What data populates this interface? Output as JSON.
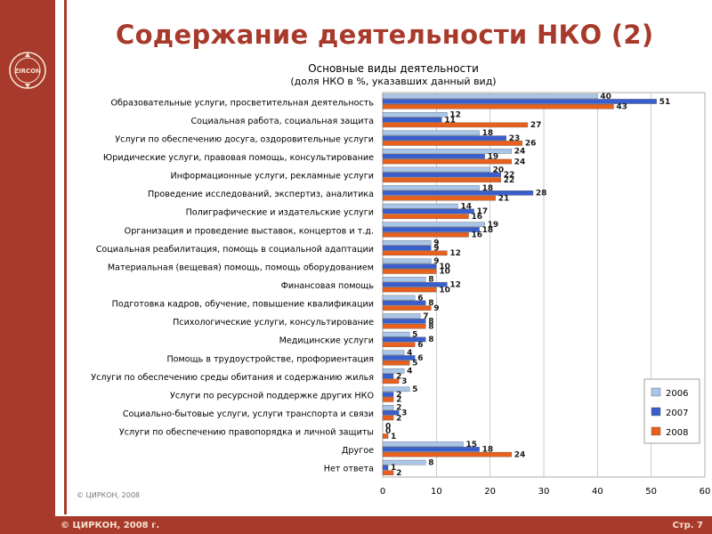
{
  "slide": {
    "title": "Содержание деятельности НКО (2)",
    "logo_text": "ZIRCON",
    "footer_left": "© ЦИРКОН, 2008 г.",
    "footer_right": "Стр. 7",
    "source_note": "© ЦИРКОН, 2008",
    "brand_color": "#a83a2c"
  },
  "chart_data": {
    "type": "bar",
    "orientation": "horizontal",
    "title": "Основные виды деятельности",
    "subtitle": "(доля НКО в %, указавших данный вид)",
    "xlim": [
      0,
      60
    ],
    "xticks": [
      0,
      10,
      20,
      30,
      40,
      50,
      60
    ],
    "grid": "vertical",
    "legend_position": "bottom-right",
    "categories": [
      "Образовательные услуги, просветительная деятельность",
      "Социальная работа, социальная защита",
      "Услуги по обеспечению досуга, оздоровительные услуги",
      "Юридические услуги, правовая помощь, консультирование",
      "Информационные услуги, рекламные услуги",
      "Проведение исследований, экспертиз, аналитика",
      "Полиграфические и издательские услуги",
      "Организация и проведение выставок, концертов и т.д.",
      "Социальная реабилитация, помощь в социальной адаптации",
      "Материальная (вещевая) помощь, помощь оборудованием",
      "Финансовая помощь",
      "Подготовка кадров, обучение, повышение квалификации",
      "Психологические услуги, консультирование",
      "Медицинские услуги",
      "Помощь в трудоустройстве, профориентация",
      "Услуги по обеспечению среды обитания и содержанию жилья",
      "Услуги по ресурсной поддержке других НКО",
      "Социально-бытовые услуги, услуги транспорта и связи",
      "Услуги по обеспечению правопорядка и личной защиты",
      "Другое",
      "Нет ответа"
    ],
    "series": [
      {
        "name": "2006",
        "color": "#a9c6e8",
        "values": [
          40,
          12,
          18,
          24,
          20,
          18,
          14,
          19,
          9,
          9,
          8,
          6,
          7,
          5,
          4,
          4,
          5,
          2,
          0,
          15,
          8
        ]
      },
      {
        "name": "2007",
        "color": "#3a5fcd",
        "values": [
          51,
          11,
          23,
          19,
          22,
          28,
          17,
          18,
          9,
          10,
          12,
          8,
          8,
          8,
          6,
          2,
          2,
          3,
          0,
          18,
          1
        ]
      },
      {
        "name": "2008",
        "color": "#e8601c",
        "values": [
          43,
          27,
          26,
          24,
          22,
          21,
          16,
          16,
          12,
          10,
          10,
          9,
          8,
          6,
          5,
          3,
          2,
          2,
          1,
          24,
          2
        ]
      }
    ]
  }
}
